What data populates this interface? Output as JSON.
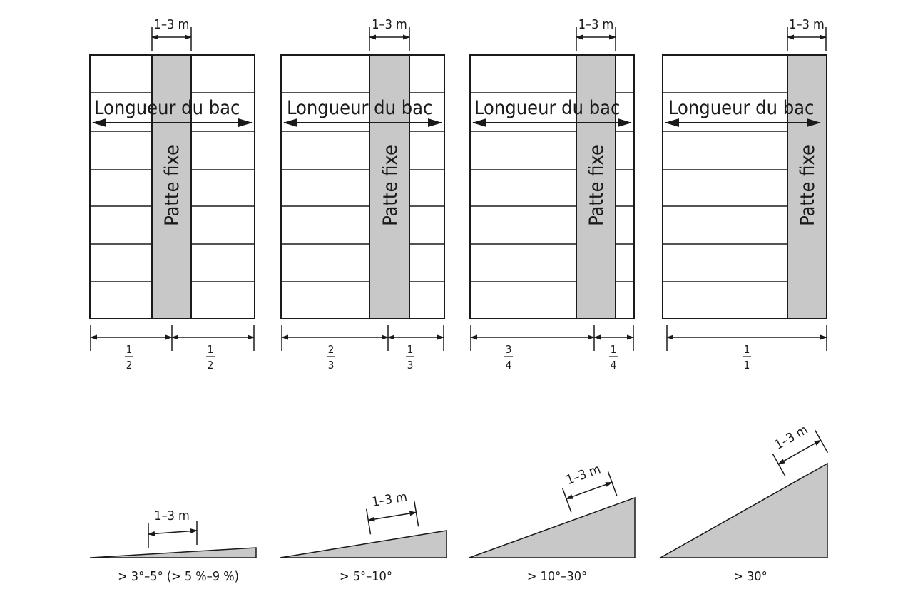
{
  "panels": [
    {
      "zone_label": "1–3 m",
      "length_label": "Longueur du bac",
      "strip_label": "Patte fixe",
      "left_fraction": {
        "num": "1",
        "den": "2"
      },
      "right_fraction": {
        "num": "1",
        "den": "2"
      }
    },
    {
      "zone_label": "1–3 m",
      "length_label": "Longueur du bac",
      "strip_label": "Patte fixe",
      "left_fraction": {
        "num": "2",
        "den": "3"
      },
      "right_fraction": {
        "num": "1",
        "den": "3"
      }
    },
    {
      "zone_label": "1–3 m",
      "length_label": "Longueur du bac",
      "strip_label": "Patte fixe",
      "left_fraction": {
        "num": "3",
        "den": "4"
      },
      "right_fraction": {
        "num": "1",
        "den": "4"
      }
    },
    {
      "zone_label": "1–3 m",
      "length_label": "Longueur du bac",
      "strip_label": "Patte fixe",
      "left_fraction": {
        "num": "1",
        "den": "1"
      },
      "right_fraction": null
    }
  ],
  "slopes": [
    {
      "zone_label": "1–3 m",
      "caption": "> 3°–5° (> 5 %–9 %)"
    },
    {
      "zone_label": "1–3 m",
      "caption": "> 5°–10°"
    },
    {
      "zone_label": "1–3 m",
      "caption": "> 10°–30°"
    },
    {
      "zone_label": "1–3 m",
      "caption": "> 30°"
    }
  ],
  "colors": {
    "line": "#1a1a1a",
    "fill": "#c8c8c8"
  }
}
